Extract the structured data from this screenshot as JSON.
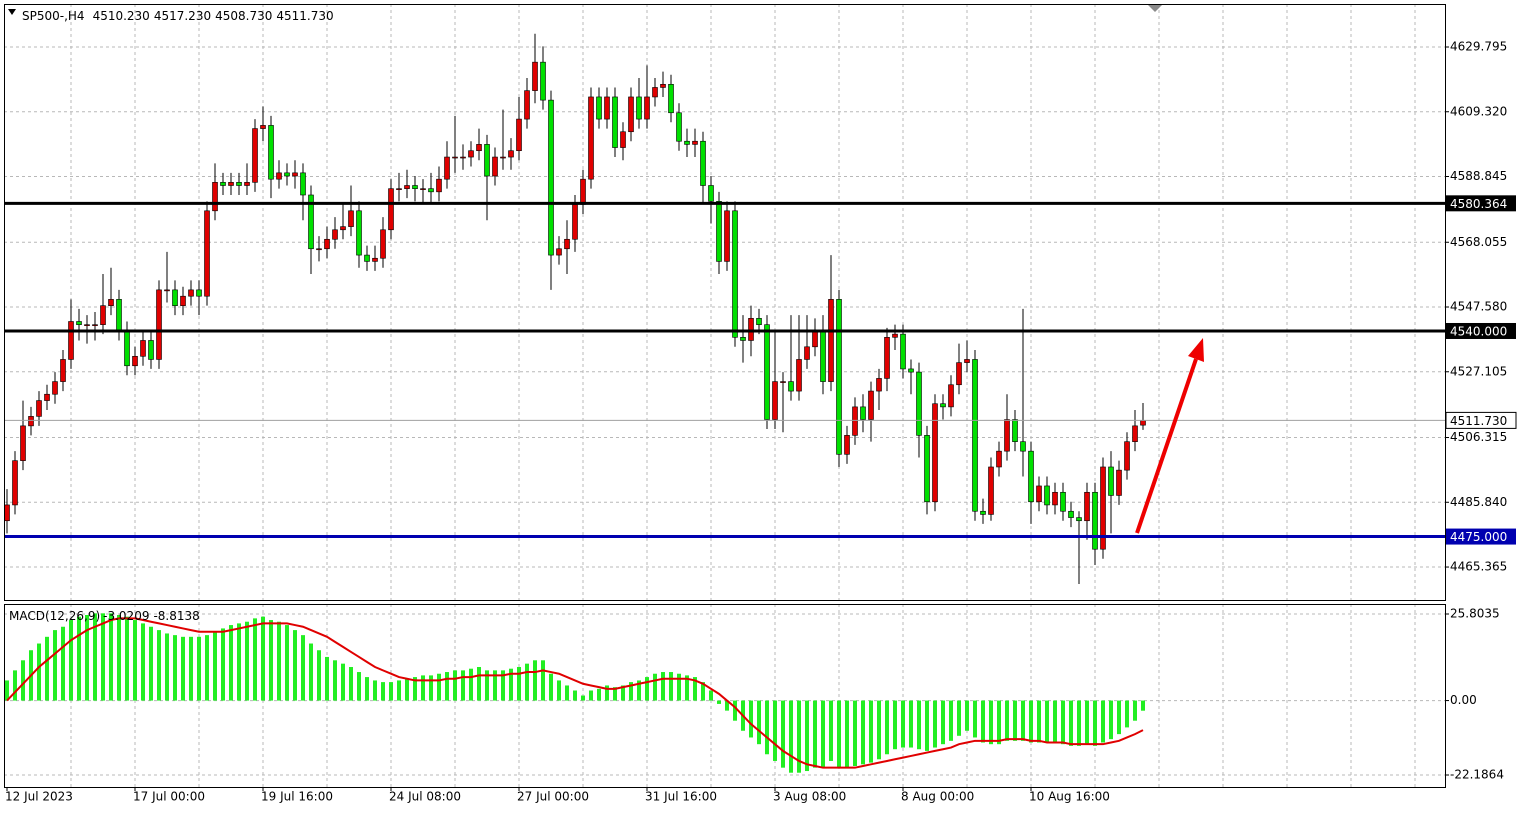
{
  "chart_data": [
    {
      "type": "candlestick",
      "title": "SP500-,H4",
      "ohlc_labels": [
        "4510.230",
        "4517.230",
        "4508.730",
        "4511.730"
      ],
      "categories": [
        "12 Jul 2023",
        null,
        null,
        null,
        null,
        null,
        null,
        null,
        null,
        null,
        null,
        null,
        null,
        null,
        null,
        null,
        "17 Jul 00:00",
        null,
        null,
        null,
        null,
        null,
        null,
        null,
        null,
        null,
        null,
        null,
        null,
        null,
        null,
        null,
        "19 Jul 16:00",
        null,
        null,
        null,
        null,
        null,
        null,
        null,
        null,
        null,
        null,
        null,
        null,
        null,
        null,
        null,
        "24 Jul 08:00",
        null,
        null,
        null,
        null,
        null,
        null,
        null,
        null,
        null,
        null,
        null,
        null,
        null,
        null,
        null,
        "27 Jul 00:00",
        null,
        null,
        null,
        null,
        null,
        null,
        null,
        null,
        null,
        null,
        null,
        null,
        null,
        null,
        null,
        "31 Jul 16:00",
        null,
        null,
        null,
        null,
        null,
        null,
        null,
        null,
        null,
        null,
        null,
        null,
        null,
        null,
        null,
        "3 Aug 08:00",
        null,
        null,
        null,
        null,
        null,
        null,
        null,
        null,
        null,
        null,
        null,
        null,
        null,
        null,
        null,
        "8 Aug 00:00",
        null,
        null,
        null,
        null,
        null,
        null,
        null,
        null,
        null,
        null,
        null,
        null,
        null,
        null,
        null,
        "10 Aug 16:00",
        null,
        null,
        null,
        null,
        null,
        null,
        null,
        null,
        null,
        null,
        null,
        null,
        null,
        null
      ],
      "open": [
        4480,
        4485,
        4499,
        4510,
        4513,
        4518,
        4520,
        4524,
        4531,
        4543,
        4542,
        4542,
        4542,
        4548,
        4550,
        4540,
        4529,
        4532,
        4537,
        4531,
        4553,
        4553,
        4548,
        4551,
        4553,
        4551,
        4578,
        4587,
        4586,
        4587,
        4586,
        4587,
        4604,
        4605,
        4588,
        4590,
        4589,
        4590,
        4583,
        4566,
        4566,
        4569,
        4572,
        4573,
        4578,
        4564,
        4562,
        4563,
        4572,
        4585,
        4585,
        4586,
        4585,
        4585,
        4584,
        4588,
        4595,
        4595,
        4595,
        4597,
        4599,
        4589,
        4595,
        4595,
        4597,
        4607,
        4616,
        4625,
        4613,
        4564,
        4566,
        4569,
        4580,
        4588,
        4614,
        4607,
        4614,
        4598,
        4603,
        4614,
        4607,
        4614,
        4617,
        4618,
        4609,
        4600,
        4599,
        4600,
        4586,
        4581,
        4562,
        4578,
        4538,
        4537,
        4544,
        4542,
        4512,
        4524,
        4524,
        4521,
        4531,
        4535,
        4540,
        4524,
        4550,
        4501,
        4507,
        4516,
        4512,
        4521,
        4525,
        4538,
        4539,
        4528,
        4527,
        4507,
        4486,
        4517,
        4516,
        4523,
        4530,
        4531,
        4483,
        4482,
        4497,
        4502,
        4512,
        4505,
        4502,
        4486,
        4491,
        4485,
        4489,
        4483,
        4481,
        4480,
        4489,
        4471,
        4497,
        4488,
        4496,
        4505,
        4510.23
      ],
      "high": [
        4490,
        4502,
        4518,
        4516,
        4521,
        4523,
        4527,
        4534,
        4550,
        4547,
        4545,
        4546,
        4558,
        4560,
        4553,
        4543,
        4535,
        4540,
        4540,
        4556,
        4565,
        4556,
        4554,
        4556,
        4556,
        4581,
        4593,
        4590,
        4590,
        4590,
        4593,
        4607,
        4611,
        4608,
        4594,
        4593,
        4594,
        4593,
        4586,
        4570,
        4573,
        4576,
        4580,
        4586,
        4581,
        4567,
        4567,
        4576,
        4588,
        4590,
        4591,
        4589,
        4588,
        4590,
        4592,
        4600,
        4608,
        4599,
        4600,
        4604,
        4602,
        4598,
        4610,
        4601,
        4614,
        4620,
        4634,
        4630,
        4616,
        4570,
        4575,
        4583,
        4591,
        4617,
        4617,
        4617,
        4617,
        4606,
        4617,
        4620,
        4624,
        4620,
        4622,
        4621,
        4612,
        4604,
        4604,
        4603,
        4589,
        4584,
        4581,
        4581,
        4545,
        4548,
        4547,
        4545,
        4540,
        4527,
        4545,
        4545,
        4545,
        4544,
        4545,
        4564,
        4553,
        4510,
        4519,
        4520,
        4524,
        4528,
        4541,
        4542,
        4542,
        4531,
        4530,
        4510,
        4520,
        4520,
        4526,
        4536,
        4537,
        4534,
        4487,
        4500,
        4505,
        4520,
        4515,
        4547,
        4505,
        4494,
        4494,
        4492,
        4492,
        4486,
        4483,
        4492,
        4492,
        4500,
        4502,
        4499,
        4508,
        4515,
        4517.23
      ],
      "low": [
        4476,
        4482,
        4496,
        4507,
        4510,
        4515,
        4517,
        4521,
        4528,
        4537,
        4536,
        4537,
        4539,
        4545,
        4537,
        4526,
        4526,
        4529,
        4528,
        4528,
        4549,
        4545,
        4545,
        4548,
        4545,
        4548,
        4575,
        4583,
        4583,
        4583,
        4583,
        4584,
        4600,
        4582,
        4585,
        4586,
        4585,
        4575,
        4558,
        4562,
        4563,
        4566,
        4569,
        4570,
        4560,
        4559,
        4559,
        4560,
        4569,
        4581,
        4582,
        4581,
        4580,
        4580,
        4581,
        4585,
        4590,
        4591,
        4592,
        4594,
        4575,
        4586,
        4591,
        4591,
        4594,
        4604,
        4612,
        4610,
        4553,
        4561,
        4558,
        4565,
        4577,
        4585,
        4604,
        4604,
        4595,
        4594,
        4600,
        4604,
        4604,
        4611,
        4614,
        4606,
        4597,
        4595,
        4595,
        4580,
        4574,
        4558,
        4559,
        4535,
        4530,
        4532,
        4539,
        4509,
        4509,
        4508,
        4518,
        4518,
        4528,
        4532,
        4520,
        4521,
        4497,
        4498,
        4504,
        4508,
        4505,
        4515,
        4521,
        4534,
        4525,
        4520,
        4500,
        4482,
        4483,
        4512,
        4513,
        4520,
        4527,
        4480,
        4479,
        4480,
        4494,
        4499,
        4502,
        4494,
        4479,
        4483,
        4482,
        4482,
        4480,
        4478,
        4460,
        4474,
        4466,
        4468,
        4476,
        4485,
        4493,
        4502,
        4508.73
      ],
      "close": [
        4485,
        4499,
        4510,
        4513,
        4518,
        4520,
        4524,
        4531,
        4543,
        4542,
        4542,
        4542,
        4548,
        4550,
        4540,
        4529,
        4532,
        4537,
        4531,
        4553,
        4553,
        4548,
        4551,
        4553,
        4551,
        4578,
        4587,
        4586,
        4587,
        4586,
        4587,
        4604,
        4605,
        4588,
        4590,
        4589,
        4590,
        4583,
        4566,
        4566,
        4569,
        4572,
        4573,
        4578,
        4564,
        4562,
        4563,
        4572,
        4585,
        4585,
        4586,
        4585,
        4585,
        4584,
        4588,
        4595,
        4595,
        4595,
        4597,
        4599,
        4589,
        4595,
        4595,
        4597,
        4607,
        4616,
        4625,
        4613,
        4564,
        4566,
        4569,
        4580,
        4588,
        4614,
        4607,
        4614,
        4598,
        4603,
        4614,
        4607,
        4614,
        4617,
        4618,
        4609,
        4600,
        4599,
        4600,
        4586,
        4581,
        4562,
        4578,
        4538,
        4537,
        4544,
        4542,
        4512,
        4524,
        4524,
        4521,
        4531,
        4535,
        4540,
        4524,
        4550,
        4501,
        4507,
        4516,
        4512,
        4521,
        4525,
        4538,
        4539,
        4528,
        4527,
        4507,
        4486,
        4517,
        4516,
        4523,
        4530,
        4531,
        4483,
        4482,
        4497,
        4502,
        4512,
        4505,
        4502,
        4486,
        4491,
        4485,
        4489,
        4483,
        4481,
        4480,
        4489,
        4471,
        4497,
        4488,
        4496,
        4505,
        4510,
        4511.73
      ],
      "up_color": "#e00000",
      "down_color": "#00e000",
      "wick_color": "#000000",
      "ylim": [
        4454.94,
        4643.39
      ],
      "yticks": [
        4629.795,
        {
          "value": 4609.32,
          "label": "4609.320"
        },
        4588.845,
        4568.055,
        {
          "value": 4547.58,
          "label": "4547.580"
        },
        4527.105,
        4506.315,
        {
          "value": 4485.84,
          "label": "4485.840"
        },
        4465.365
      ],
      "levels": [
        {
          "value": 4580.364,
          "color": "#000000"
        },
        {
          "value": 4540,
          "label": "4540.000",
          "color": "#000000"
        },
        {
          "value": 4475,
          "label": "4475.000",
          "color": "#0000b0"
        }
      ],
      "last_price": {
        "value": 4511.73,
        "label": "4511.730"
      },
      "grid": true
    },
    {
      "type": "macd",
      "title": "MACD(12,26,9)",
      "readout": [
        "-3.0209",
        "-8.8138"
      ],
      "series": [
        {
          "kind": "histogram",
          "color": "#22ee22",
          "values": [
            6,
            9,
            12,
            15,
            17,
            19,
            21,
            22,
            24,
            25,
            25.5,
            26,
            26,
            26,
            25.5,
            25,
            24,
            23,
            22,
            21,
            20,
            19.5,
            19,
            19,
            19,
            19.5,
            20.5,
            21.5,
            22.5,
            23,
            23.5,
            24.5,
            25,
            24,
            23.5,
            22.5,
            21,
            19.5,
            17,
            15,
            13,
            12,
            11,
            10,
            8.5,
            7,
            6,
            5.5,
            5.5,
            6,
            6.5,
            7,
            7.5,
            7.5,
            8,
            8.5,
            9,
            9,
            9.5,
            10,
            9,
            9,
            9,
            9.5,
            10,
            11,
            12,
            12,
            8,
            6,
            4.5,
            3,
            1.5,
            3,
            3.5,
            4.5,
            4,
            4.5,
            5.5,
            6,
            7,
            8,
            8.5,
            8.5,
            8,
            7.5,
            7,
            5.5,
            3,
            -1,
            -3,
            -6,
            -9,
            -11,
            -13,
            -16,
            -18,
            -20,
            -21.5,
            -21.5,
            -21,
            -20,
            -20,
            -18,
            -20,
            -20,
            -19.5,
            -19,
            -18.5,
            -17.5,
            -16,
            -14.5,
            -14,
            -14,
            -14.5,
            -15,
            -14,
            -13,
            -12,
            -10.5,
            -9,
            -11,
            -12.5,
            -13,
            -13,
            -12,
            -12,
            -12,
            -12.5,
            -12.5,
            -12.5,
            -12.5,
            -13,
            -13.5,
            -13.5,
            -13,
            -13.5,
            -12.5,
            -11.5,
            -10,
            -8,
            -6,
            -3.0209
          ]
        },
        {
          "kind": "line",
          "color": "#e00000",
          "values": [
            0,
            2.5,
            5,
            7.5,
            10,
            12,
            14,
            16,
            18,
            19.5,
            21,
            22,
            23,
            24,
            24.5,
            24.5,
            24.5,
            24,
            23.5,
            23,
            22.5,
            22,
            21.5,
            21,
            20.5,
            20.5,
            20.5,
            20.5,
            21,
            21.5,
            22,
            22.5,
            23,
            23,
            23,
            23,
            22.5,
            22,
            21,
            20,
            19,
            17.5,
            16,
            14.5,
            13,
            11.5,
            10,
            9,
            8,
            7,
            6.5,
            6,
            6,
            6,
            6,
            6.5,
            6.5,
            7,
            7,
            7.5,
            7.5,
            7.5,
            7.5,
            8,
            8,
            8.5,
            8.5,
            9,
            8.5,
            8,
            7,
            6,
            5,
            4.5,
            4,
            3.5,
            3.5,
            4,
            4.5,
            5,
            5.5,
            6,
            6.5,
            6.5,
            6.5,
            6.5,
            6,
            5,
            3.5,
            2,
            0,
            -2,
            -4.5,
            -7,
            -9,
            -11,
            -13,
            -15,
            -16.5,
            -18,
            -19,
            -19.5,
            -20,
            -20,
            -20,
            -20,
            -20,
            -19.5,
            -19,
            -18.5,
            -18,
            -17.5,
            -17,
            -16.5,
            -16,
            -15.5,
            -15,
            -14.5,
            -14,
            -13,
            -12.5,
            -12,
            -12,
            -12,
            -12,
            -11.5,
            -11.5,
            -11.5,
            -12,
            -12,
            -12.5,
            -12.5,
            -12.5,
            -13,
            -13,
            -13,
            -13,
            -13,
            -12.5,
            -12,
            -11,
            -10,
            -8.8138
          ]
        }
      ],
      "ylim": [
        -25.76,
        28.78
      ],
      "yticks": [
        25.8035,
        {
          "value": 0,
          "label": "0.00"
        },
        -22.1864
      ],
      "grid": true
    }
  ]
}
